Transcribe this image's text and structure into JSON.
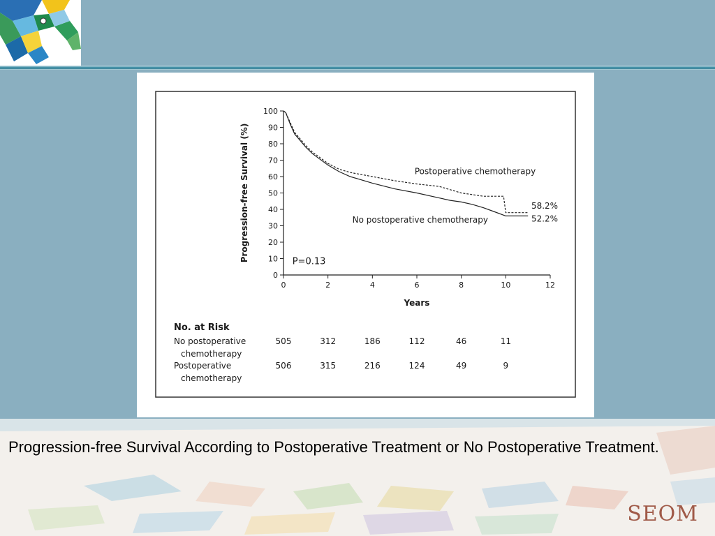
{
  "slide": {
    "caption": "Progression-free Survival According to Postoperative Treatment or No Postoperative Treatment.",
    "brand": "SEOM",
    "colors": {
      "background": "#8aafc0",
      "caption_band": "#f3f0ec",
      "brand": "#a05a48"
    }
  },
  "chart_data": {
    "type": "line",
    "title": "",
    "xlabel": "Years",
    "ylabel": "Progression-free Survival (%)",
    "xlim": [
      0,
      12
    ],
    "ylim": [
      0,
      100
    ],
    "x_ticks": [
      0,
      2,
      4,
      6,
      8,
      10,
      12
    ],
    "y_ticks": [
      0,
      10,
      20,
      30,
      40,
      50,
      60,
      70,
      80,
      90,
      100
    ],
    "grid": false,
    "annotation": "P=0.13",
    "series": [
      {
        "name": "Postoperative chemotherapy",
        "style": "dashed",
        "end_label": "58.2%",
        "x": [
          0,
          0.1,
          0.3,
          0.5,
          0.75,
          1.0,
          1.3,
          1.6,
          2.0,
          2.5,
          3.0,
          4.0,
          5.0,
          6.0,
          7.0,
          7.5,
          8.0,
          8.5,
          9.0,
          9.5,
          9.9,
          10.0,
          10.5,
          11.0
        ],
        "y": [
          100,
          99,
          93,
          87,
          83,
          79,
          75,
          72,
          68,
          64.5,
          62.5,
          60,
          57.5,
          55.5,
          54,
          52,
          50,
          49,
          48,
          48,
          48,
          38,
          38,
          38
        ]
      },
      {
        "name": "No postoperative chemotherapy",
        "style": "solid",
        "end_label": "52.2%",
        "x": [
          0,
          0.1,
          0.3,
          0.5,
          0.75,
          1.0,
          1.3,
          1.6,
          2.0,
          2.5,
          3.0,
          4.0,
          5.0,
          6.0,
          7.0,
          7.5,
          8.0,
          8.5,
          9.0,
          9.5,
          10.0,
          10.5,
          11.0
        ],
        "y": [
          100,
          99,
          92,
          86,
          82,
          78,
          74,
          71,
          67,
          63,
          60,
          56,
          52.5,
          50,
          47,
          45.5,
          44.5,
          43,
          41,
          38.5,
          36,
          36,
          36
        ]
      }
    ],
    "risk_table": {
      "title": "No. at Risk",
      "rows": [
        {
          "label_line1": "No postoperative",
          "label_line2": "chemotherapy",
          "values": [
            "505",
            "312",
            "186",
            "112",
            "46",
            "11"
          ]
        },
        {
          "label_line1": "Postoperative",
          "label_line2": "chemotherapy",
          "values": [
            "506",
            "315",
            "216",
            "124",
            "49",
            "9"
          ]
        }
      ],
      "x": [
        0,
        2,
        4,
        6,
        8,
        10
      ]
    }
  }
}
